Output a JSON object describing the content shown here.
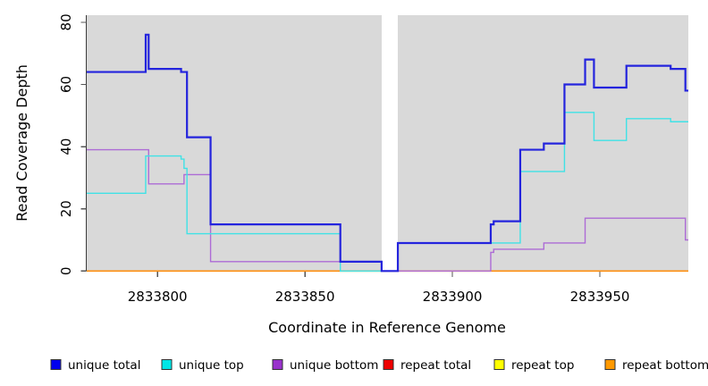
{
  "figure": {
    "kind": "read-coverage-plot"
  },
  "axis": {
    "x_label": "Coordinate in Reference Genome",
    "y_label": "Read Coverage Depth"
  },
  "colors": {
    "plot_background": "#d9d9d9",
    "gap_band": "#ffffff",
    "axis_line": "#3c3c3c",
    "tick": "#555555",
    "text": "#000000"
  },
  "legend": {
    "items": [
      {
        "label": "unique total",
        "color": "#0000ee"
      },
      {
        "label": "unique top",
        "color": "#00e6e6"
      },
      {
        "label": "unique bottom",
        "color": "#9932cc"
      },
      {
        "label": "repeat total",
        "color": "#ee0000"
      },
      {
        "label": "repeat top",
        "color": "#ffff00"
      },
      {
        "label": "repeat bottom",
        "color": "#ff9900"
      }
    ]
  },
  "chart_data": {
    "type": "line",
    "subtype": "step-coverage",
    "title": "",
    "xlabel": "Coordinate in Reference Genome",
    "ylabel": "Read Coverage Depth",
    "xlim": [
      2833776,
      2833980
    ],
    "ylim": [
      0,
      82
    ],
    "x_ticks": [
      2833800,
      2833850,
      2833900,
      2833950
    ],
    "y_ticks": [
      0,
      20,
      40,
      60,
      80
    ],
    "grid": false,
    "legend_position": "bottom",
    "gap_region": {
      "start": 2833876,
      "end": 2833881.5
    },
    "series": [
      {
        "name": "repeat total",
        "color": "#de0000",
        "width": 1.4,
        "steps": [
          [
            2833776,
            0
          ]
        ]
      },
      {
        "name": "repeat top",
        "color": "#f0f000",
        "width": 1.4,
        "steps": [
          [
            2833776,
            0
          ]
        ]
      },
      {
        "name": "repeat bottom",
        "color": "#ff8f0f",
        "width": 1.7,
        "steps": [
          [
            2833776,
            0
          ]
        ]
      },
      {
        "name": "unique bottom",
        "color": "#ad6bd6",
        "width": 1.4,
        "steps": [
          [
            2833776,
            39
          ],
          [
            2833797,
            28
          ],
          [
            2833809,
            31
          ],
          [
            2833818,
            3
          ],
          [
            2833876,
            0
          ],
          [
            2833913,
            6
          ],
          [
            2833914,
            7
          ],
          [
            2833931,
            9
          ],
          [
            2833945,
            17
          ],
          [
            2833979,
            10
          ]
        ]
      },
      {
        "name": "unique top",
        "color": "#3fe2e6",
        "width": 1.4,
        "steps": [
          [
            2833776,
            25
          ],
          [
            2833796,
            37
          ],
          [
            2833808,
            36
          ],
          [
            2833809,
            33
          ],
          [
            2833810,
            12
          ],
          [
            2833862,
            0
          ],
          [
            2833881.5,
            9
          ],
          [
            2833923,
            32
          ],
          [
            2833938,
            51
          ],
          [
            2833948,
            42
          ],
          [
            2833959,
            49
          ],
          [
            2833974,
            48
          ]
        ]
      },
      {
        "name": "unique total",
        "color": "#2424dd",
        "width": 2.2,
        "steps": [
          [
            2833776,
            64
          ],
          [
            2833796,
            76
          ],
          [
            2833797,
            65
          ],
          [
            2833808,
            64
          ],
          [
            2833810,
            43
          ],
          [
            2833818,
            15
          ],
          [
            2833862,
            3
          ],
          [
            2833876,
            0
          ],
          [
            2833881.5,
            9
          ],
          [
            2833913,
            15
          ],
          [
            2833914,
            16
          ],
          [
            2833923,
            39
          ],
          [
            2833931,
            41
          ],
          [
            2833938,
            60
          ],
          [
            2833945,
            68
          ],
          [
            2833948,
            59
          ],
          [
            2833959,
            66
          ],
          [
            2833974,
            65
          ],
          [
            2833979,
            58
          ]
        ]
      }
    ]
  }
}
